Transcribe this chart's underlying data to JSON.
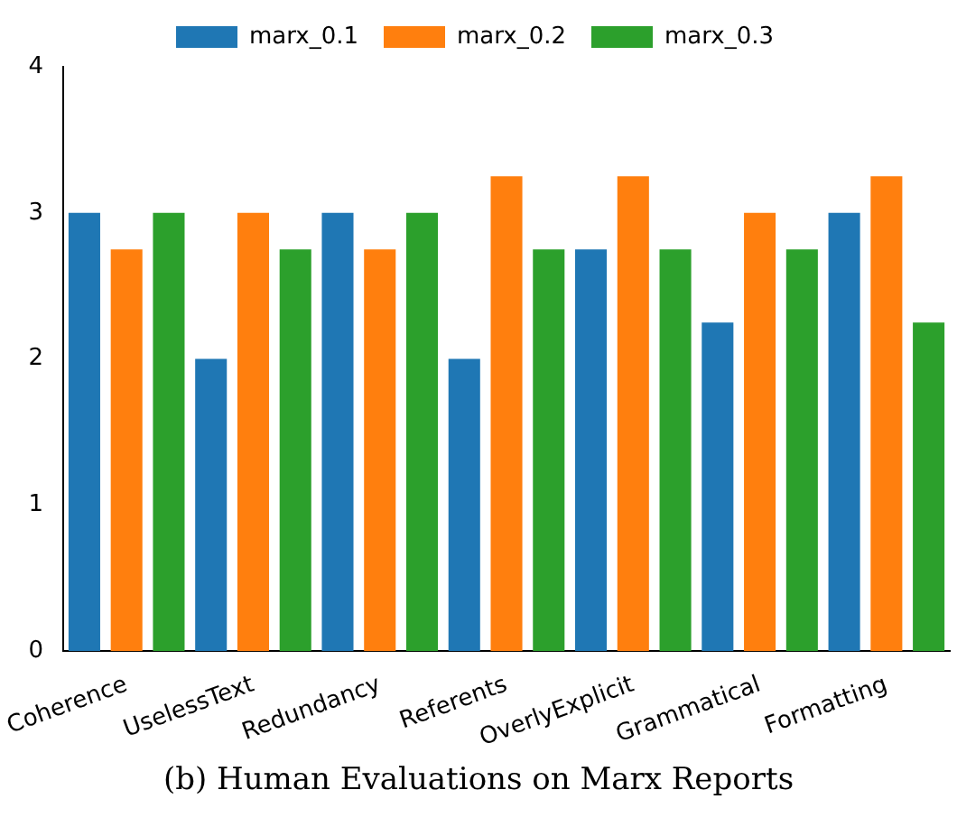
{
  "chart_data": {
    "type": "bar",
    "categories": [
      "Coherence",
      "UselessText",
      "Redundancy",
      "Referents",
      "OverlyExplicit",
      "Grammatical",
      "Formatting"
    ],
    "series": [
      {
        "name": "marx_0.1",
        "color": "#1f77b4",
        "values": [
          3,
          2,
          3,
          2,
          2.75,
          2.25,
          3
        ]
      },
      {
        "name": "marx_0.2",
        "color": "#ff7f0e",
        "values": [
          2.75,
          3,
          2.75,
          3.25,
          3.25,
          3,
          3.25
        ]
      },
      {
        "name": "marx_0.3",
        "color": "#2ca02c",
        "values": [
          3,
          2.75,
          3,
          2.75,
          2.75,
          2.75,
          2.25
        ]
      }
    ],
    "ylim": [
      0,
      4
    ],
    "yticks": [
      0,
      1,
      2,
      3,
      4
    ],
    "grid": false,
    "legend": "top",
    "annotations": [
      "(b) Human Evaluations on Marx Reports"
    ]
  }
}
